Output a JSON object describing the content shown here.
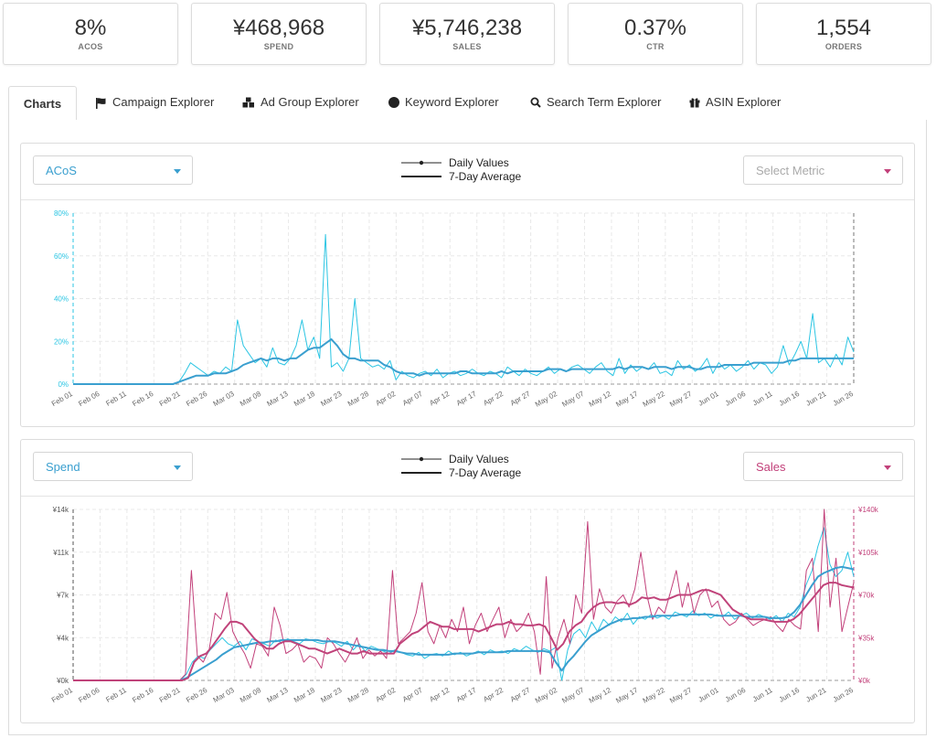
{
  "kpis": [
    {
      "value": "8%",
      "label": "ACOS"
    },
    {
      "value": "¥468,968",
      "label": "SPEND"
    },
    {
      "value": "¥5,746,238",
      "label": "SALES"
    },
    {
      "value": "0.37%",
      "label": "CTR"
    },
    {
      "value": "1,554",
      "label": "ORDERS"
    }
  ],
  "tabs": [
    {
      "label": "Charts",
      "icon": "none"
    },
    {
      "label": "Campaign Explorer",
      "icon": "flag-icon"
    },
    {
      "label": "Ad Group Explorer",
      "icon": "cubes-icon"
    },
    {
      "label": "Keyword Explorer",
      "icon": "circle-icon"
    },
    {
      "label": "Search Term Explorer",
      "icon": "search-icon"
    },
    {
      "label": "ASIN Explorer",
      "icon": "gift-icon"
    }
  ],
  "legend": {
    "daily": "Daily Values",
    "avg": "7-Day Average"
  },
  "colors": {
    "cyan": "#2bc5e3",
    "blue": "#3a9fcf",
    "pink": "#c2407a",
    "pinkDark": "#c0437a"
  },
  "x_labels": [
    "Feb 01",
    "Feb 06",
    "Feb 11",
    "Feb 16",
    "Feb 21",
    "Feb 26",
    "Mar 03",
    "Mar 08",
    "Mar 13",
    "Mar 18",
    "Mar 23",
    "Mar 28",
    "Apr 02",
    "Apr 07",
    "Apr 12",
    "Apr 17",
    "Apr 22",
    "Apr 27",
    "May 02",
    "May 07",
    "May 12",
    "May 17",
    "May 22",
    "May 27",
    "Jun 01",
    "Jun 06",
    "Jun 11",
    "Jun 16",
    "Jun 21",
    "Jun 26"
  ],
  "chart1": {
    "left_select": "ACoS",
    "right_select": "Select Metric",
    "y_ticks": [
      "0%",
      "20%",
      "40%",
      "60%",
      "80%"
    ]
  },
  "chart2": {
    "left_select": "Spend",
    "right_select": "Sales",
    "y_left_ticks": [
      "¥0k",
      "¥4k",
      "¥7k",
      "¥11k",
      "¥14k"
    ],
    "y_right_ticks": [
      "¥0k",
      "¥35k",
      "¥70k",
      "¥105k",
      "¥140k"
    ]
  },
  "chart_data": [
    {
      "type": "line",
      "ylabel": "",
      "ylim": [
        0,
        80
      ],
      "x": "daily Feb 01 – Jun 26",
      "series": [
        {
          "name": "Daily Values",
          "values": [
            0,
            0,
            0,
            0,
            0,
            0,
            0,
            0,
            0,
            0,
            0,
            0,
            0,
            0,
            0,
            0,
            0,
            0,
            1,
            5,
            10,
            8,
            6,
            4,
            6,
            5,
            8,
            6,
            30,
            18,
            14,
            10,
            12,
            8,
            17,
            10,
            9,
            12,
            18,
            30,
            16,
            22,
            12,
            70,
            8,
            10,
            6,
            12,
            40,
            12,
            10,
            8,
            9,
            7,
            11,
            2,
            6,
            4,
            3,
            5,
            6,
            4,
            7,
            3,
            5,
            6,
            4,
            5,
            7,
            5,
            4,
            6,
            5,
            3,
            8,
            6,
            4,
            7,
            5,
            4,
            6,
            8,
            5,
            7,
            6,
            8,
            9,
            7,
            5,
            8,
            10,
            6,
            4,
            12,
            5,
            9,
            6,
            8,
            7,
            10,
            5,
            6,
            4,
            11,
            7,
            9,
            6,
            8,
            12,
            5,
            10,
            7,
            9,
            6,
            8,
            11,
            7,
            10,
            9,
            5,
            8,
            18,
            9,
            14,
            20,
            12,
            33,
            10,
            12,
            8,
            14,
            9,
            22,
            15
          ]
        },
        {
          "name": "7-Day Average",
          "values": [
            0,
            0,
            0,
            0,
            0,
            0,
            0,
            0,
            0,
            0,
            0,
            0,
            0,
            0,
            0,
            0,
            0,
            0,
            1,
            2,
            3,
            4,
            4,
            4,
            5,
            5,
            5,
            6,
            7,
            9,
            10,
            11,
            12,
            11,
            12,
            12,
            11,
            12,
            12,
            14,
            16,
            17,
            17,
            19,
            21,
            18,
            14,
            12,
            12,
            11,
            11,
            11,
            11,
            9,
            8,
            6,
            5,
            5,
            5,
            4,
            5,
            5,
            5,
            5,
            5,
            5,
            6,
            6,
            5,
            5,
            5,
            5,
            5,
            6,
            5,
            6,
            6,
            6,
            6,
            6,
            6,
            7,
            7,
            7,
            6,
            7,
            7,
            7,
            7,
            7,
            7,
            7,
            7,
            8,
            7,
            8,
            8,
            8,
            7,
            8,
            8,
            8,
            7,
            8,
            8,
            8,
            7,
            7,
            8,
            8,
            8,
            9,
            9,
            9,
            9,
            9,
            10,
            10,
            10,
            10,
            10,
            10,
            11,
            11,
            12,
            12,
            12,
            12,
            12,
            12,
            12,
            12,
            12,
            12
          ]
        }
      ]
    },
    {
      "type": "line",
      "ylabel": "",
      "ylim_left": [
        0,
        14000
      ],
      "ylim_right": [
        0,
        140000
      ],
      "x": "daily Feb 01 – Jun 26",
      "series": [
        {
          "name": "Spend (Daily Values)",
          "axis": "left",
          "values": [
            0,
            0,
            0,
            0,
            0,
            0,
            0,
            0,
            0,
            0,
            0,
            0,
            0,
            0,
            0,
            0,
            0,
            0,
            0,
            500,
            1500,
            2000,
            1800,
            2500,
            3000,
            3500,
            3000,
            2800,
            3200,
            2500,
            3400,
            3200,
            3000,
            2800,
            3300,
            3100,
            3400,
            3200,
            3000,
            3400,
            3300,
            3100,
            3000,
            3200,
            3100,
            2800,
            3200,
            2500,
            3000,
            2400,
            2800,
            2600,
            2400,
            2200,
            2500,
            2300,
            2100,
            2000,
            2300,
            1800,
            2100,
            2200,
            2000,
            2400,
            2100,
            2300,
            2000,
            2200,
            2400,
            2100,
            2500,
            2300,
            2400,
            2200,
            2600,
            2400,
            2800,
            2500,
            2300,
            2600,
            2400,
            2700,
            0,
            2500,
            3800,
            4200,
            3500,
            4800,
            4000,
            5000,
            4500,
            5200,
            4800,
            5500,
            4600,
            5200,
            5000,
            5400,
            5100,
            5300,
            5000,
            5600,
            5400,
            5200,
            5700,
            5300,
            5500,
            5100,
            5400,
            5200,
            5600,
            5000,
            5300,
            5500,
            5100,
            5400,
            5200,
            5000,
            5300,
            4800,
            5500,
            5200,
            6000,
            7800,
            9000,
            11000,
            12500,
            9500,
            8500,
            9000,
            10500,
            8500
          ]
        },
        {
          "name": "Sales (Daily Values)",
          "axis": "right",
          "values": [
            0,
            0,
            0,
            0,
            0,
            0,
            0,
            0,
            0,
            0,
            0,
            0,
            0,
            0,
            0,
            0,
            0,
            0,
            0,
            5000,
            90000,
            20000,
            15000,
            25000,
            55000,
            50000,
            72000,
            40000,
            30000,
            22000,
            10000,
            30000,
            28000,
            20000,
            60000,
            45000,
            22000,
            25000,
            30000,
            15000,
            20000,
            18000,
            10000,
            35000,
            30000,
            22000,
            15000,
            24000,
            35000,
            18000,
            25000,
            20000,
            24000,
            18000,
            90000,
            30000,
            35000,
            40000,
            55000,
            80000,
            40000,
            30000,
            45000,
            35000,
            50000,
            40000,
            60000,
            30000,
            45000,
            55000,
            40000,
            50000,
            60000,
            35000,
            50000,
            40000,
            45000,
            55000,
            40000,
            5000,
            85000,
            10000,
            35000,
            50000,
            30000,
            70000,
            55000,
            130000,
            50000,
            75000,
            60000,
            55000,
            65000,
            70000,
            60000,
            75000,
            105000,
            70000,
            50000,
            60000,
            55000,
            72000,
            90000,
            60000,
            80000,
            55000,
            70000,
            75000,
            60000,
            65000,
            50000,
            45000,
            48000,
            55000,
            50000,
            45000,
            48000,
            50000,
            52000,
            45000,
            40000,
            50000,
            45000,
            42000,
            90000,
            100000,
            40000,
            140000,
            60000,
            100000,
            40000,
            60000,
            80000
          ]
        },
        {
          "name": "Spend (7-Day Average)",
          "axis": "left",
          "values": [
            0,
            0,
            0,
            0,
            0,
            0,
            0,
            0,
            0,
            0,
            0,
            0,
            0,
            0,
            0,
            0,
            0,
            0,
            0,
            200,
            500,
            800,
            1100,
            1400,
            1700,
            2100,
            2400,
            2700,
            2800,
            2900,
            3000,
            3100,
            3100,
            3200,
            3200,
            3300,
            3300,
            3300,
            3300,
            3300,
            3300,
            3300,
            3200,
            3200,
            3200,
            3100,
            3000,
            2900,
            2800,
            2700,
            2600,
            2500,
            2500,
            2400,
            2400,
            2300,
            2200,
            2200,
            2100,
            2100,
            2100,
            2100,
            2100,
            2100,
            2200,
            2200,
            2200,
            2200,
            2300,
            2300,
            2300,
            2300,
            2300,
            2400,
            2400,
            2400,
            2400,
            2400,
            2400,
            2400,
            2300,
            1500,
            800,
            1500,
            2000,
            2600,
            3200,
            3700,
            4000,
            4300,
            4600,
            4800,
            5000,
            5000,
            5100,
            5100,
            5200,
            5200,
            5300,
            5300,
            5300,
            5300,
            5400,
            5400,
            5400,
            5400,
            5400,
            5400,
            5300,
            5300,
            5300,
            5300,
            5300,
            5200,
            5200,
            5200,
            5200,
            5100,
            5100,
            5100,
            5200,
            5600,
            6200,
            7000,
            7800,
            8500,
            8800,
            9000,
            9200,
            9300,
            9200,
            9100
          ]
        },
        {
          "name": "Sales (7-Day Average)",
          "axis": "right",
          "values": [
            0,
            0,
            0,
            0,
            0,
            0,
            0,
            0,
            0,
            0,
            0,
            0,
            0,
            0,
            0,
            0,
            0,
            0,
            0,
            2000,
            15000,
            20000,
            22000,
            28000,
            35000,
            42000,
            48000,
            48000,
            46000,
            40000,
            34000,
            30000,
            26000,
            26000,
            30000,
            32000,
            32000,
            30000,
            28000,
            26000,
            26000,
            24000,
            22000,
            24000,
            26000,
            24000,
            22000,
            22000,
            24000,
            22000,
            22000,
            22000,
            22000,
            22000,
            30000,
            34000,
            38000,
            40000,
            44000,
            48000,
            46000,
            44000,
            44000,
            42000,
            42000,
            42000,
            42000,
            40000,
            42000,
            44000,
            46000,
            46000,
            48000,
            46000,
            46000,
            45000,
            45000,
            46000,
            44000,
            35000,
            25000,
            30000,
            40000,
            45000,
            48000,
            55000,
            60000,
            63000,
            64000,
            64000,
            63000,
            64000,
            62000,
            64000,
            68000,
            67000,
            68000,
            66000,
            66000,
            68000,
            70000,
            70000,
            70000,
            72000,
            74000,
            74000,
            72000,
            70000,
            64000,
            58000,
            55000,
            52000,
            50000,
            50000,
            50000,
            49000,
            48000,
            48000,
            48000,
            50000,
            54000,
            60000,
            66000,
            72000,
            78000,
            80000,
            80000,
            78000,
            77000,
            76000
          ]
        }
      ]
    }
  ]
}
